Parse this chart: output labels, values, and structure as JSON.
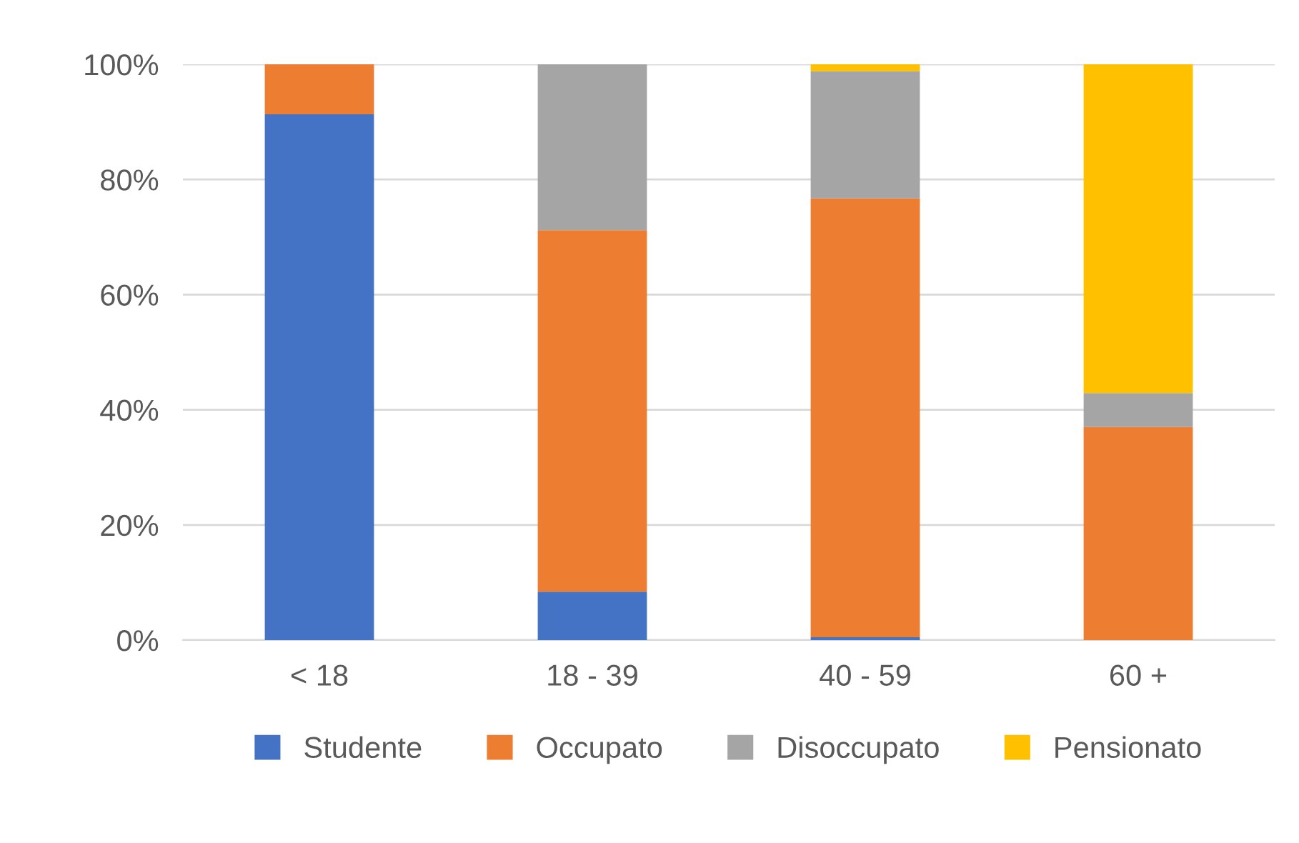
{
  "chart_data": {
    "type": "bar",
    "stacked": true,
    "categories": [
      "< 18",
      "18 - 39",
      "40 - 59",
      "60 +"
    ],
    "series": [
      {
        "name": "Studente",
        "color": "#4472c4",
        "values": [
          91.3,
          8.4,
          0.5,
          0
        ]
      },
      {
        "name": "Occupato",
        "color": "#ed7d31",
        "values": [
          8.7,
          62.8,
          76.2,
          37.0
        ]
      },
      {
        "name": "Disoccupato",
        "color": "#a5a5a5",
        "values": [
          0,
          28.8,
          22.1,
          5.9
        ]
      },
      {
        "name": "Pensionato",
        "color": "#ffc000",
        "values": [
          0,
          0,
          1.2,
          57.1
        ]
      }
    ],
    "ylim": [
      0,
      100
    ],
    "yticks": [
      {
        "value": 0,
        "label": "0%"
      },
      {
        "value": 20,
        "label": "20%"
      },
      {
        "value": 40,
        "label": "40%"
      },
      {
        "value": 60,
        "label": "60%"
      },
      {
        "value": 80,
        "label": "80%"
      },
      {
        "value": 100,
        "label": "100%"
      }
    ],
    "grid": "y",
    "legend": "bottom"
  }
}
